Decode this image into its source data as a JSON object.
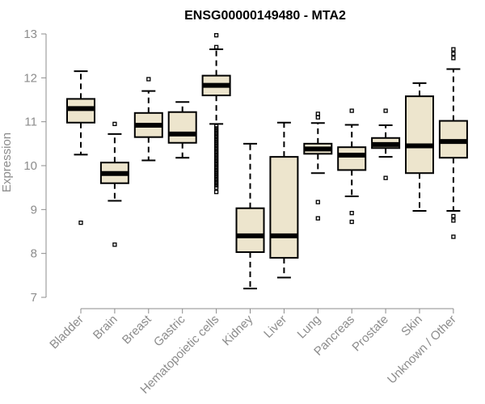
{
  "chart_data": {
    "type": "boxplot",
    "title": "ENSG00000149480 - MTA2",
    "xlabel": "",
    "ylabel": "Expression",
    "ylim": [
      7,
      13
    ],
    "yticks": [
      7,
      8,
      9,
      10,
      11,
      12,
      13
    ],
    "box_fill": "#ede5cd",
    "categories": [
      "Bladder",
      "Brain",
      "Breast",
      "Gastric",
      "Hematopoietic cells",
      "Kidney",
      "Liver",
      "Lung",
      "Pancreas",
      "Prostate",
      "Skin",
      "Unknown / Other"
    ],
    "boxes": [
      {
        "name": "Bladder",
        "whisker_low": 10.25,
        "q1": 10.98,
        "median": 11.3,
        "q3": 11.52,
        "whisker_high": 12.15,
        "outliers": [
          8.7
        ]
      },
      {
        "name": "Brain",
        "whisker_low": 9.2,
        "q1": 9.6,
        "median": 9.82,
        "q3": 10.07,
        "whisker_high": 10.72,
        "outliers": [
          8.2,
          10.95
        ]
      },
      {
        "name": "Breast",
        "whisker_low": 10.12,
        "q1": 10.65,
        "median": 10.92,
        "q3": 11.2,
        "whisker_high": 11.7,
        "outliers": [
          11.97
        ]
      },
      {
        "name": "Gastric",
        "whisker_low": 10.18,
        "q1": 10.52,
        "median": 10.72,
        "q3": 11.22,
        "whisker_high": 11.45,
        "outliers": []
      },
      {
        "name": "Hematopoietic cells",
        "whisker_low": 10.95,
        "q1": 11.6,
        "median": 11.83,
        "q3": 12.05,
        "whisker_high": 12.65,
        "outliers": [
          12.97,
          12.7,
          10.9,
          10.85,
          10.8,
          10.75,
          10.7,
          10.65,
          10.6,
          10.55,
          10.5,
          10.45,
          10.4,
          10.35,
          10.3,
          10.25,
          10.2,
          10.15,
          10.1,
          10.05,
          10.0,
          9.95,
          9.9,
          9.85,
          9.8,
          9.75,
          9.7,
          9.65,
          9.6,
          9.55,
          9.5,
          9.4
        ]
      },
      {
        "name": "Kidney",
        "whisker_low": 7.2,
        "q1": 8.03,
        "median": 8.4,
        "q3": 9.03,
        "whisker_high": 10.5,
        "outliers": []
      },
      {
        "name": "Liver",
        "whisker_low": 7.45,
        "q1": 7.9,
        "median": 8.4,
        "q3": 10.2,
        "whisker_high": 10.98,
        "outliers": []
      },
      {
        "name": "Lung",
        "whisker_low": 9.83,
        "q1": 10.27,
        "median": 10.38,
        "q3": 10.5,
        "whisker_high": 10.97,
        "outliers": [
          11.18,
          11.1,
          9.17,
          8.8
        ]
      },
      {
        "name": "Pancreas",
        "whisker_low": 9.3,
        "q1": 9.9,
        "median": 10.24,
        "q3": 10.42,
        "whisker_high": 10.93,
        "outliers": [
          11.25,
          8.92,
          8.72
        ]
      },
      {
        "name": "Prostate",
        "whisker_low": 10.2,
        "q1": 10.4,
        "median": 10.48,
        "q3": 10.63,
        "whisker_high": 10.92,
        "outliers": [
          11.25,
          9.72
        ]
      },
      {
        "name": "Skin",
        "whisker_low": 8.97,
        "q1": 9.83,
        "median": 10.45,
        "q3": 11.58,
        "whisker_high": 11.88,
        "outliers": []
      },
      {
        "name": "Unknown / Other",
        "whisker_low": 8.97,
        "q1": 10.18,
        "median": 10.55,
        "q3": 11.02,
        "whisker_high": 12.2,
        "outliers": [
          12.65,
          12.55,
          12.45,
          8.85,
          8.75,
          8.38
        ]
      }
    ]
  }
}
